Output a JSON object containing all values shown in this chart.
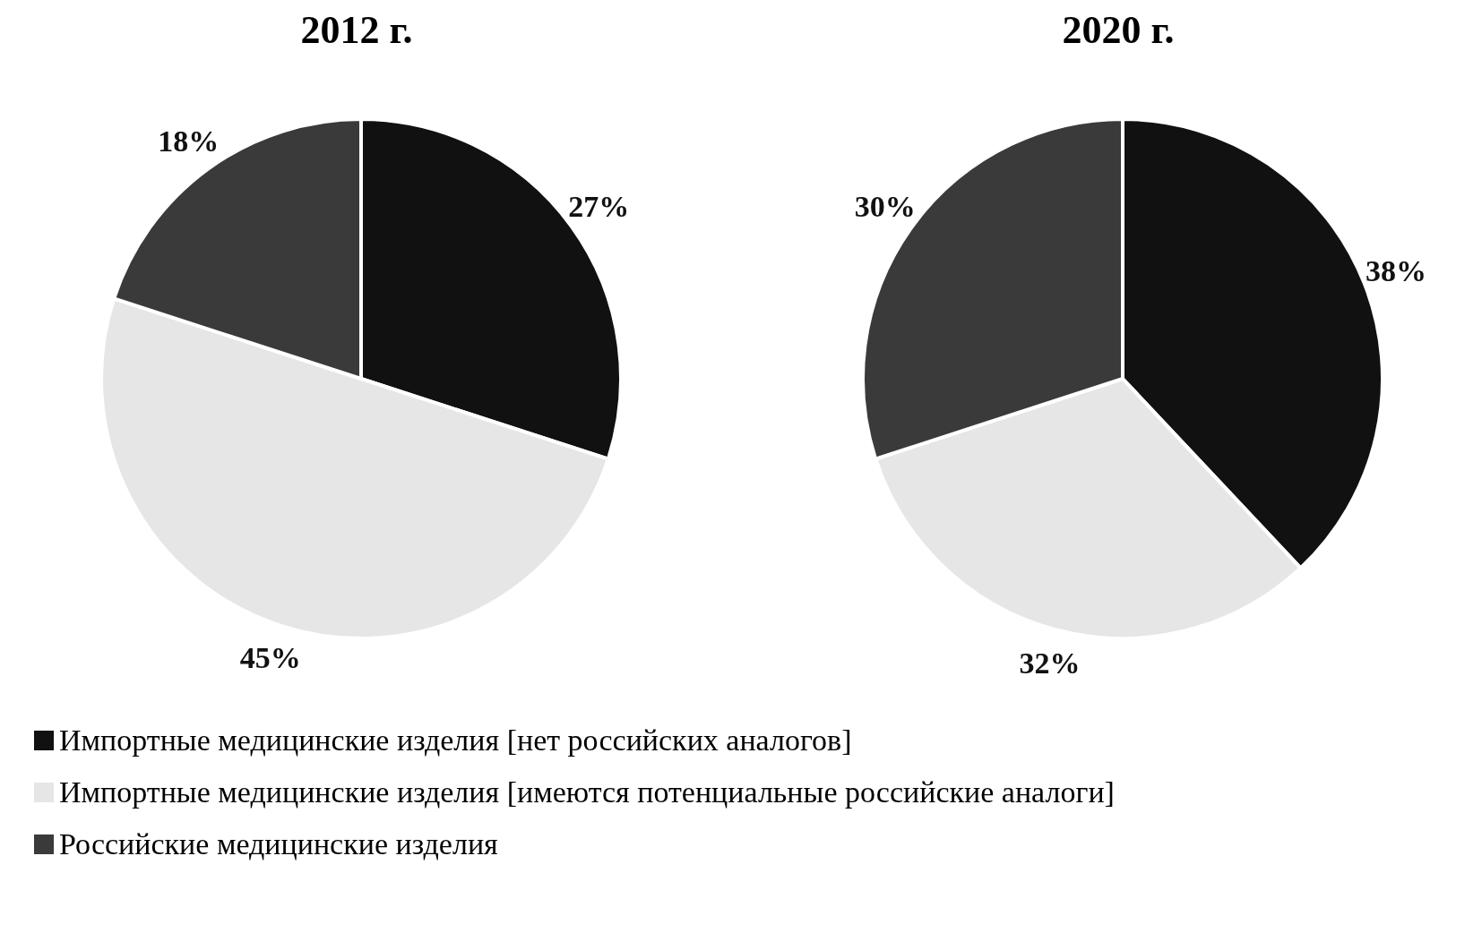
{
  "chart_data": [
    {
      "type": "pie",
      "title": "2012 г.",
      "categories": [
        "Импортные медицинские изделия [нет российских аналогов]",
        "Импортные медицинские изделия [имеются потенциальные российские аналоги]",
        "Российские медицинские изделия"
      ],
      "values": [
        27,
        45,
        18
      ],
      "value_labels": [
        "27%",
        "45%",
        "18%"
      ],
      "colors": [
        "#111111",
        "#e6e6e6",
        "#3a3a3a"
      ],
      "legend": "bottom"
    },
    {
      "type": "pie",
      "title": "2020 г.",
      "categories": [
        null,
        null,
        null
      ],
      "values": [
        38,
        32,
        30
      ],
      "value_labels": [
        "38%",
        "32%",
        "30%"
      ],
      "colors": [
        "#111111",
        "#e6e6e6",
        "#3a3a3a"
      ]
    }
  ]
}
